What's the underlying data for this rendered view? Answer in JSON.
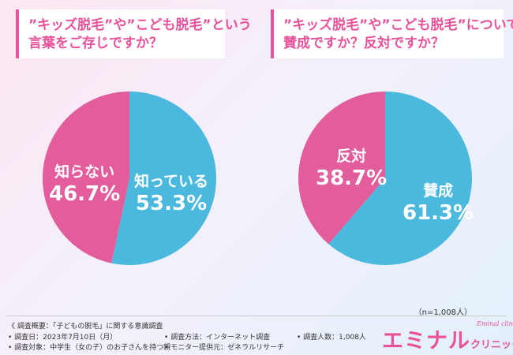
{
  "questions": {
    "q1": {
      "line1": "”キッズ脱毛”や”こども脱毛”という",
      "line2": "言葉をご存じですか？"
    },
    "q2": {
      "line1": "”キッズ脱毛”や”こども脱毛”について、",
      "line2": "賛成ですか？反対ですか？"
    }
  },
  "chart_data": [
    {
      "type": "pie",
      "slices": [
        {
          "label": "知っている",
          "value": 53.3,
          "display": "53.3%",
          "color": "#4bb8de"
        },
        {
          "label": "知らない",
          "value": 46.7,
          "display": "46.7%",
          "color": "#e35c9c"
        }
      ]
    },
    {
      "type": "pie",
      "slices": [
        {
          "label": "賛成",
          "value": 61.3,
          "display": "61.3%",
          "color": "#4bb8de"
        },
        {
          "label": "反対",
          "value": 38.7,
          "display": "38.7%",
          "color": "#e35c9c"
        }
      ]
    }
  ],
  "sample_size": "（n=1,008人）",
  "survey": {
    "overview": "《 調査概要：「子どもの脱毛」に関する意識調査",
    "date": "• 調査日：2023年7月10日（月）",
    "method": "• 調査方法：インターネット調査",
    "count": "• 調査人数：1,008人",
    "target": "• 調査対象：中学生（女の子）のお子さんを持つ親",
    "provider": "• モニター提供元：ゼネラルリサーチ"
  },
  "logo": {
    "main": "エミナル",
    "suffix": "クリニック",
    "sub": "Eminal clinic♡"
  }
}
